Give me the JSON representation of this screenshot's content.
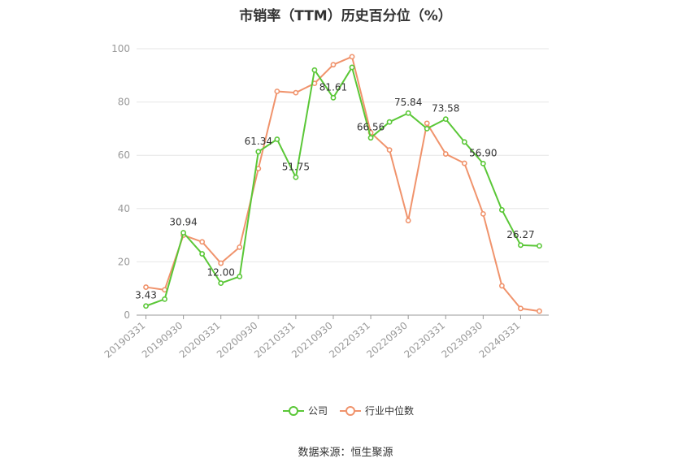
{
  "chart_data": {
    "type": "line",
    "title": "市销率（TTM）历史百分位（%）",
    "source": "数据来源：恒生聚源",
    "xlabel": "",
    "ylabel": "",
    "ylim": [
      0,
      100
    ],
    "yticks": [
      0,
      20,
      40,
      60,
      80,
      100
    ],
    "grid": true,
    "legend_position": "bottom",
    "categories": [
      "20190331",
      "20190630",
      "20190930",
      "20191231",
      "20200331",
      "20200630",
      "20200930",
      "20201231",
      "20210331",
      "20210630",
      "20210930",
      "20211231",
      "20220331",
      "20220630",
      "20220930",
      "20221231",
      "20230331",
      "20230630",
      "20230930",
      "20231231",
      "20240331",
      "20240630"
    ],
    "tick_labels": [
      "20190331",
      "20190930",
      "20200331",
      "20200930",
      "20210331",
      "20210930",
      "20220331",
      "20220930",
      "20230331",
      "20230930",
      "20240331"
    ],
    "series": [
      {
        "name": "公司",
        "color": "#5ac737",
        "values": [
          3.43,
          6.0,
          30.94,
          23.0,
          12.0,
          14.5,
          61.34,
          66.0,
          51.75,
          92.0,
          81.61,
          93.0,
          66.56,
          72.5,
          75.84,
          70.0,
          73.58,
          65.0,
          56.9,
          39.5,
          26.27,
          26.0
        ],
        "labels": {
          "0": "3.43",
          "2": "30.94",
          "4": "12.00",
          "6": "61.34",
          "8": "51.75",
          "10": "81.61",
          "12": "66.56",
          "14": "75.84",
          "16": "73.58",
          "18": "56.90",
          "20": "26.27"
        }
      },
      {
        "name": "行业中位数",
        "color": "#f0936c",
        "values": [
          10.5,
          9.5,
          30.0,
          27.5,
          19.5,
          25.5,
          55.0,
          84.0,
          83.5,
          87.0,
          94.0,
          97.0,
          68.5,
          62.0,
          35.5,
          72.0,
          60.5,
          57.0,
          38.0,
          11.0,
          2.5,
          1.5
        ]
      }
    ]
  }
}
